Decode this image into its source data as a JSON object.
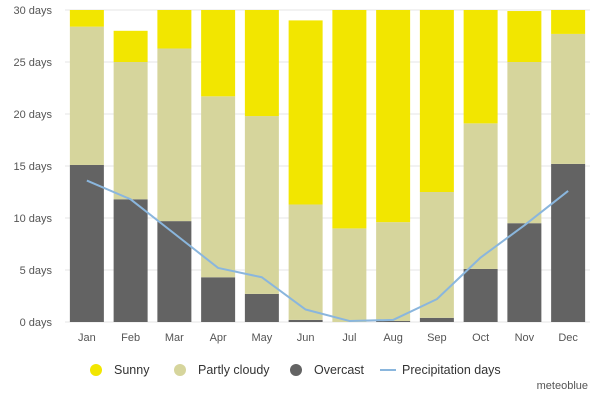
{
  "chart_data": {
    "type": "bar",
    "stacked": true,
    "categories": [
      "Jan",
      "Feb",
      "Mar",
      "Apr",
      "May",
      "Jun",
      "Jul",
      "Aug",
      "Sep",
      "Oct",
      "Nov",
      "Dec"
    ],
    "y_tick_labels": [
      "0 days",
      "5 days",
      "10 days",
      "15 days",
      "20 days",
      "25 days",
      "30 days"
    ],
    "y_ticks": [
      0,
      5,
      10,
      15,
      20,
      25,
      30
    ],
    "ylim": [
      0,
      30
    ],
    "series": [
      {
        "name": "Overcast",
        "color": "#636363",
        "values": [
          15.1,
          11.8,
          9.7,
          4.3,
          2.7,
          0.2,
          0.0,
          0.1,
          0.4,
          5.1,
          9.5,
          15.2
        ]
      },
      {
        "name": "Partly cloudy",
        "color": "#d6d59c",
        "values": [
          13.3,
          13.2,
          16.6,
          17.4,
          17.1,
          11.1,
          9.0,
          9.5,
          12.1,
          14.0,
          15.5,
          12.5
        ]
      },
      {
        "name": "Sunny",
        "color": "#f2e600",
        "values": [
          1.6,
          3.0,
          3.7,
          8.3,
          10.2,
          17.7,
          21.0,
          20.4,
          17.5,
          10.9,
          4.9,
          2.3
        ]
      }
    ],
    "line_series": {
      "name": "Precipitation days",
      "color": "#8ab6dd",
      "values": [
        13.6,
        11.8,
        8.5,
        5.2,
        4.3,
        1.2,
        0.1,
        0.2,
        2.2,
        6.2,
        9.3,
        12.6
      ]
    }
  },
  "legend": {
    "sunny": "Sunny",
    "partly_cloudy": "Partly cloudy",
    "overcast": "Overcast",
    "precipitation": "Precipitation days"
  },
  "credit": "meteoblue"
}
